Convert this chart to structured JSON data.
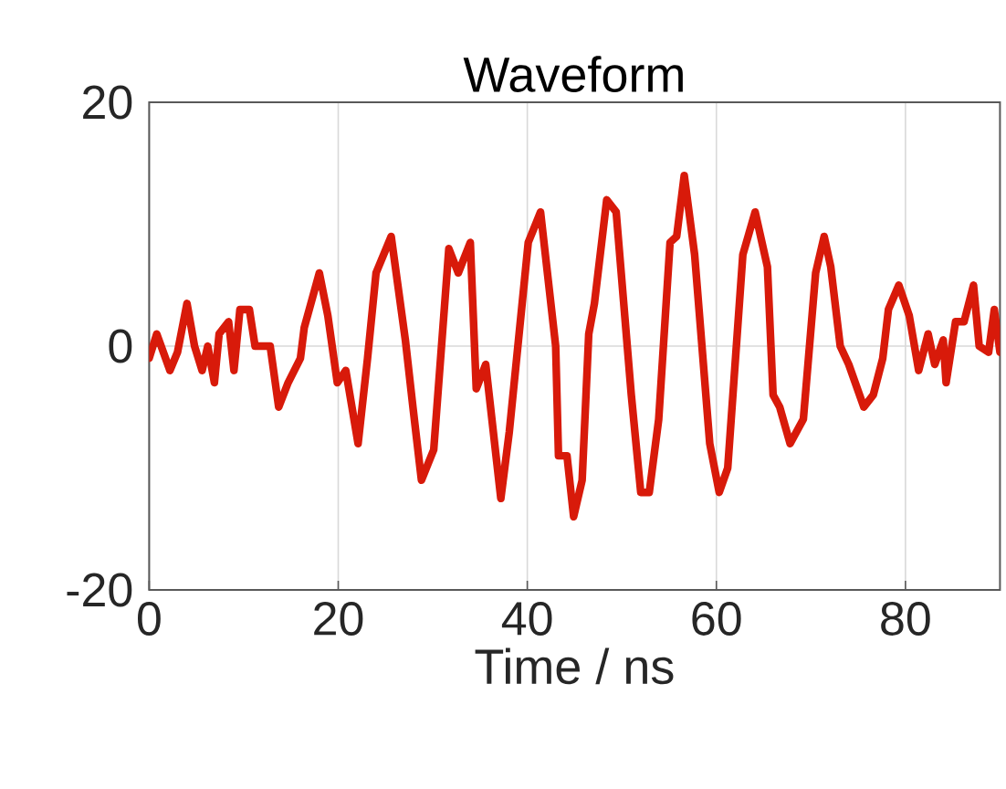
{
  "chart_data": {
    "type": "line",
    "title": "Waveform",
    "xlabel": "Time / ns",
    "xlim": [
      0,
      90
    ],
    "ylim": [
      -20,
      20
    ],
    "xticks": [
      0,
      20,
      40,
      60,
      80
    ],
    "yticks": [
      -20,
      0,
      20
    ],
    "grid": true,
    "marker": "none",
    "line_style": "solid",
    "series": [
      {
        "color": "#d81a0a",
        "x": [
          0,
          0.8,
          2.2,
          3.0,
          4.0,
          4.8,
          5.6,
          6.2,
          6.9,
          7.4,
          8.4,
          8.97,
          9.6,
          10.6,
          11.2,
          12.8,
          13.7,
          14.7,
          16.0,
          16.4,
          18.0,
          18.9,
          19.9,
          20.8,
          22.1,
          23.1,
          24.0,
          25.6,
          27.1,
          27.9,
          28.8,
          30.1,
          31.7,
          32.7,
          33.97,
          34.6,
          35.6,
          37.2,
          38.1,
          40.1,
          41.4,
          43.0,
          43.3,
          44.2,
          44.9,
          45.8,
          46.5,
          47.1,
          48.4,
          49.4,
          51.0,
          52.0,
          52.9,
          53.9,
          55.1,
          55.8,
          56.6,
          57.7,
          59.3,
          60.3,
          61.2,
          62.8,
          64.1,
          65.4,
          66.0,
          66.7,
          67.8,
          69.2,
          70.5,
          71.4,
          72.1,
          73.1,
          74.0,
          75.6,
          76.6,
          77.6,
          78.2,
          79.3,
          80.4,
          81.4,
          82.4,
          83.1,
          84.0,
          84.3,
          85.3,
          86.2,
          87.2,
          87.8,
          88.8,
          89.4,
          90
        ],
        "values": [
          -1,
          1,
          -2,
          -0.5,
          3.5,
          0,
          -2,
          0,
          -3,
          1,
          2,
          -2,
          3,
          3,
          0,
          0,
          -5,
          -3,
          -1,
          1.5,
          6,
          2.5,
          -3,
          -2,
          -8,
          -1,
          6,
          9,
          0.5,
          -5,
          -11,
          -8.5,
          8,
          6,
          8.5,
          -3.5,
          -1.5,
          -12.5,
          -7,
          8.5,
          11,
          0,
          -9,
          -9,
          -14,
          -11,
          1,
          3.5,
          12,
          11,
          -4,
          -12,
          -12,
          -6,
          8.5,
          9,
          14,
          7.5,
          -8,
          -12,
          -10,
          7.5,
          11,
          6.5,
          -4,
          -5,
          -8,
          -6,
          6,
          9,
          6.5,
          0,
          -1.5,
          -5,
          -4,
          -1,
          3,
          5,
          2.5,
          -2,
          1,
          -1.5,
          0.5,
          -3,
          2,
          2,
          5,
          0,
          -0.5,
          3,
          -0.5
        ]
      }
    ]
  }
}
